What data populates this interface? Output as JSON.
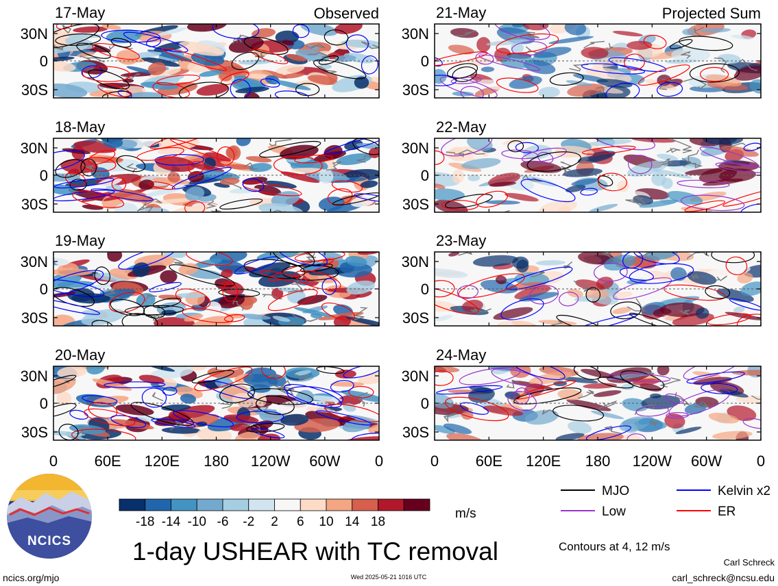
{
  "chart_data": {
    "type": "heatmap",
    "title": "1-day USHEAR with TC removal",
    "units": "m/s",
    "columns": [
      {
        "header": "Observed",
        "panels": [
          {
            "date": "17-May",
            "seed": 11
          },
          {
            "date": "18-May",
            "seed": 23
          },
          {
            "date": "19-May",
            "seed": 37
          },
          {
            "date": "20-May",
            "seed": 41
          }
        ]
      },
      {
        "header": "Projected Sum",
        "panels": [
          {
            "date": "21-May",
            "seed": 53
          },
          {
            "date": "22-May",
            "seed": 67
          },
          {
            "date": "23-May",
            "seed": 71
          },
          {
            "date": "24-May",
            "seed": 89
          }
        ]
      }
    ],
    "y_ticks": [
      "30N",
      "0",
      "30S"
    ],
    "x_ticks": [
      "0",
      "60E",
      "120E",
      "180",
      "120W",
      "60W",
      "0"
    ],
    "colorbar": {
      "colors": [
        "#08306b",
        "#2166ac",
        "#4393c3",
        "#74a9cf",
        "#a6cee3",
        "#d1e5f0",
        "#f7f7f7",
        "#fddbc7",
        "#f4a582",
        "#d6604d",
        "#b2182b",
        "#67001f"
      ],
      "labels": [
        "-18",
        "-14",
        "-10",
        "-6",
        "-2",
        "2",
        "6",
        "10",
        "14",
        "18"
      ]
    },
    "legend": [
      {
        "label": "MJO",
        "color": "#000000"
      },
      {
        "label": "Kelvin x2",
        "color": "#0000ff"
      },
      {
        "label": "Low",
        "color": "#9a32cd"
      },
      {
        "label": "ER",
        "color": "#ff0000"
      }
    ],
    "contour_note": "Contours at 4, 12 m/s"
  },
  "footer": {
    "left_url": "ncics.org/mjo",
    "timestamp": "Wed 2025-05-21 1016 UTC",
    "author": "Carl Schreck",
    "email": "carl_schreck@ncsu.edu",
    "logo_text": "NCICS"
  }
}
